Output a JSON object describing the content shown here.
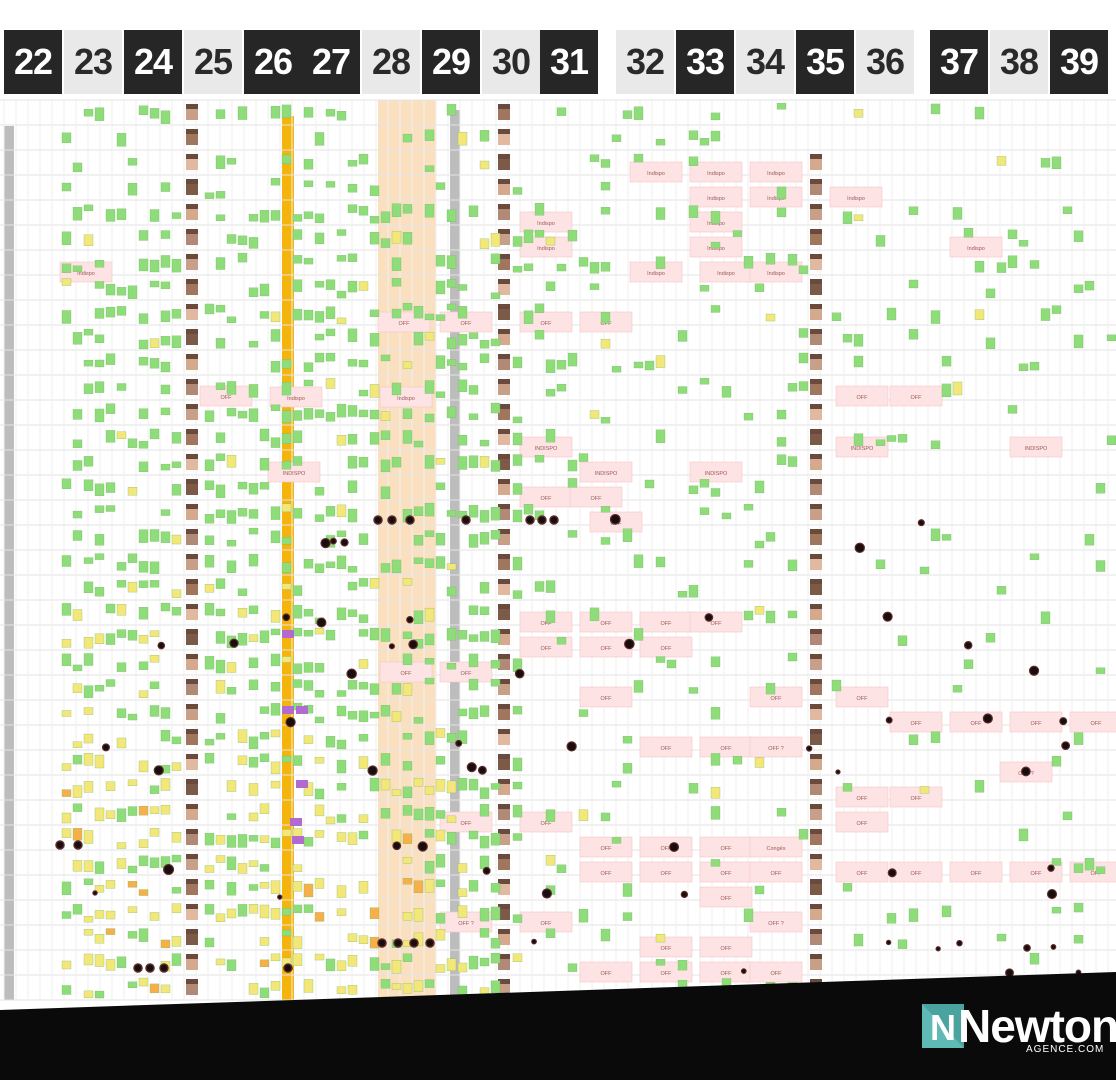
{
  "weeks": [
    {
      "label": "22",
      "style": "dark"
    },
    {
      "label": "23",
      "style": "light"
    },
    {
      "label": "24",
      "style": "dark"
    },
    {
      "label": "25",
      "style": "light"
    },
    {
      "label": "26",
      "style": "dark"
    },
    {
      "label": "27",
      "style": "dark"
    },
    {
      "label": "28",
      "style": "light"
    },
    {
      "label": "29",
      "style": "dark"
    },
    {
      "label": "30",
      "style": "light"
    },
    {
      "label": "31",
      "style": "dark"
    },
    {
      "label": "32",
      "style": "light"
    },
    {
      "label": "33",
      "style": "dark"
    },
    {
      "label": "34",
      "style": "light"
    },
    {
      "label": "35",
      "style": "dark"
    },
    {
      "label": "36",
      "style": "light"
    },
    {
      "label": "37",
      "style": "dark"
    },
    {
      "label": "38",
      "style": "light"
    },
    {
      "label": "39",
      "style": "dark"
    }
  ],
  "block_labels": {
    "off": "OFF",
    "off_query": "OFF ?",
    "indispo": "INDISPO",
    "indispo_short": "Indispo",
    "conges": "Congés"
  },
  "logo": {
    "word": "Newton",
    "sub": "AGENCE.COM",
    "mark_letter": "N"
  },
  "colors": {
    "sticky_green": "#8fdc7a",
    "sticky_yellow": "#f3e77a",
    "sticky_orange": "#f6b04a",
    "off_pink": "#fde3e3",
    "highlight_peach": "#fbe0c0",
    "vacation_amber": "#f5b40c",
    "grid_line": "#e3e3e3",
    "footer_black": "#0a0a0a",
    "logo_teal": "#5fb9b4"
  }
}
